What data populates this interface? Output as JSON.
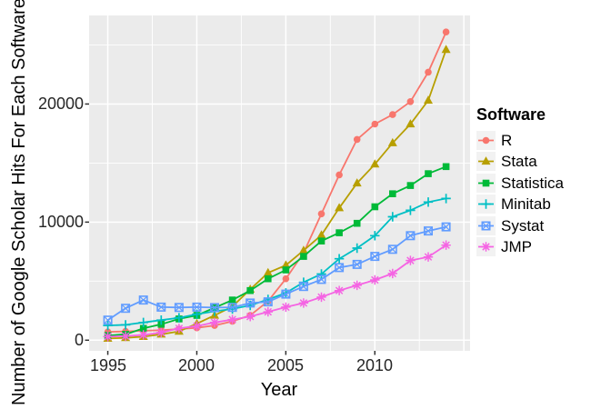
{
  "figure": {
    "y_axis_title": "Number of Google Scholar Hits For Each Software",
    "x_axis_title": "Year"
  },
  "legend": {
    "title": "Software",
    "items": [
      "R",
      "Stata",
      "Statistica",
      "Minitab",
      "Systat",
      "JMP"
    ]
  },
  "colors": {
    "page_background": "#FFFFFF",
    "panel_background": "#EBEBEB",
    "gridline": "#FFFFFF",
    "legend_key_background": "#F2F2F2",
    "axis_text": "#262626",
    "axis_title": "#000000",
    "tick_mark": "#333333"
  },
  "chart_data": {
    "type": "line",
    "title": "",
    "xlabel": "Year",
    "ylabel": "Number of Google Scholar Hits For Each Software",
    "grid": true,
    "legend_position": "right",
    "xlim": [
      1993.95,
      2015.35
    ],
    "ylim": [
      -900,
      27500
    ],
    "x_tick_values": [
      1995,
      2000,
      2005,
      2010
    ],
    "x_tick_labels": [
      "1995",
      "2000",
      "2005",
      "2010"
    ],
    "y_tick_values": [
      0,
      10000,
      20000
    ],
    "y_tick_labels": [
      "0",
      "10000",
      "20000"
    ],
    "x_major_gridlines": [
      1995,
      2000,
      2005,
      2010,
      2015
    ],
    "x_minor_gridlines": [
      1997.5,
      2002.5,
      2007.5,
      2012.5
    ],
    "y_major_gridlines": [
      0,
      10000,
      20000
    ],
    "y_minor_gridlines": [
      5000,
      15000,
      25000
    ],
    "x": [
      1995,
      1996,
      1997,
      1998,
      1999,
      2000,
      2001,
      2002,
      2003,
      2004,
      2005,
      2006,
      2007,
      2008,
      2009,
      2010,
      2011,
      2012,
      2013,
      2014
    ],
    "series": [
      {
        "name": "R",
        "color": "#F8766D",
        "marker": "circle-filled",
        "values": [
          700,
          750,
          800,
          850,
          950,
          1050,
          1250,
          1600,
          2100,
          3300,
          5200,
          7400,
          10700,
          14000,
          17000,
          18300,
          19100,
          20200,
          22700,
          26100
        ]
      },
      {
        "name": "Stata",
        "color": "#B79F00",
        "marker": "triangle-filled",
        "values": [
          150,
          200,
          300,
          500,
          750,
          1400,
          2100,
          2850,
          4300,
          5700,
          6350,
          7600,
          8900,
          11200,
          13300,
          14900,
          16700,
          18300,
          20300,
          24600
        ]
      },
      {
        "name": "Statistica",
        "color": "#00BA38",
        "marker": "square-filled",
        "values": [
          400,
          500,
          1000,
          1350,
          1800,
          2100,
          2750,
          3400,
          4200,
          5200,
          5950,
          7100,
          8400,
          9100,
          9900,
          11300,
          12400,
          13100,
          14100,
          14700
        ]
      },
      {
        "name": "Minitab",
        "color": "#00BFC4",
        "marker": "plus",
        "values": [
          1250,
          1300,
          1500,
          1700,
          1900,
          2200,
          2450,
          2650,
          2950,
          3450,
          4000,
          4900,
          5600,
          6900,
          7800,
          8850,
          10450,
          11000,
          11700,
          12000
        ]
      },
      {
        "name": "Systat",
        "color": "#619CFF",
        "marker": "square-cross",
        "values": [
          1700,
          2700,
          3400,
          2800,
          2770,
          2800,
          2760,
          2780,
          3150,
          3250,
          3900,
          4550,
          5150,
          6150,
          6420,
          7100,
          7700,
          8850,
          9250,
          9600
        ]
      },
      {
        "name": "JMP",
        "color": "#F564E3",
        "marker": "asterisk",
        "values": [
          300,
          350,
          450,
          650,
          1000,
          1200,
          1500,
          1750,
          2000,
          2400,
          2800,
          3150,
          3650,
          4200,
          4650,
          5100,
          5650,
          6750,
          7050,
          8050
        ]
      }
    ]
  }
}
